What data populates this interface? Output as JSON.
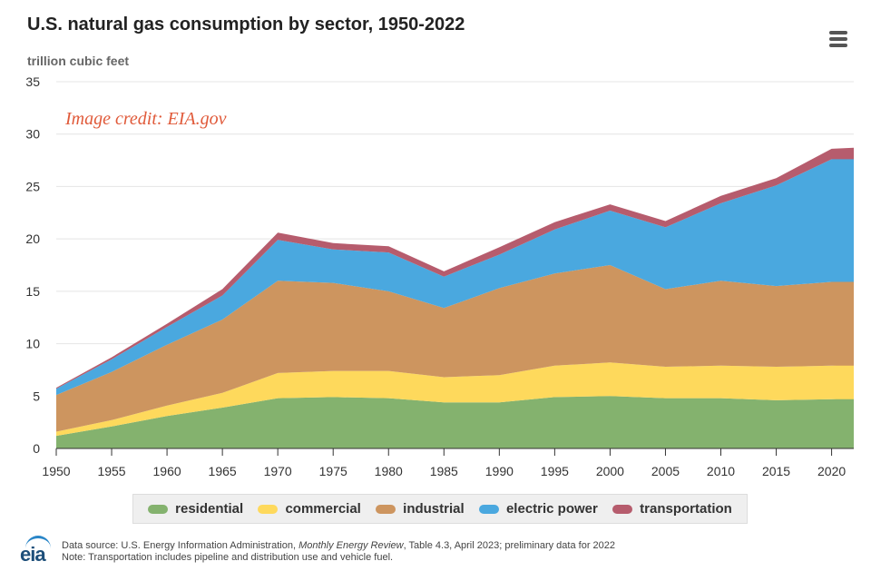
{
  "header": {
    "title": "U.S. natural gas consumption by sector, 1950-2022",
    "menu_icon": "hamburger-menu-icon"
  },
  "annotation": "Image credit: EIA.gov",
  "footer": {
    "source_prefix": "Data source: U.S. Energy Information Administration, ",
    "source_italic": "Monthly Energy Review",
    "source_suffix": ", Table 4.3, April 2023; preliminary data for 2022",
    "note": "Note: Transportation includes pipeline and distribution use and vehicle fuel.",
    "logo_text": "eia"
  },
  "colors": {
    "residential": "#84b26e",
    "commercial": "#fed95c",
    "industrial": "#cd955f",
    "electric_power": "#4aa8df",
    "transportation": "#b65c6d",
    "gridline": "#e4e4e4",
    "axis": "#333333"
  },
  "chart_data": {
    "type": "area",
    "stacked": true,
    "ylabel": "trillion cubic feet",
    "xlabel": "",
    "ylim": [
      0,
      35
    ],
    "xlim": [
      1950,
      2022
    ],
    "yticks": [
      0,
      5,
      10,
      15,
      20,
      25,
      30,
      35
    ],
    "xticks": [
      1950,
      1955,
      1960,
      1965,
      1970,
      1975,
      1980,
      1985,
      1990,
      1995,
      2000,
      2005,
      2010,
      2015,
      2020
    ],
    "grid": "horizontal",
    "legend": "bottom",
    "series_x": {
      "start": 1950,
      "step": 5
    },
    "series": [
      {
        "name": "residential",
        "key": "residential",
        "values": [
          1.2,
          2.1,
          3.1,
          3.9,
          4.8,
          4.9,
          4.8,
          4.4,
          4.4,
          4.9,
          5.0,
          4.8,
          4.8,
          4.6,
          4.7
        ]
      },
      {
        "name": "commercial",
        "key": "commercial",
        "values": [
          0.4,
          0.6,
          1.0,
          1.4,
          2.4,
          2.5,
          2.6,
          2.4,
          2.6,
          3.0,
          3.2,
          3.0,
          3.1,
          3.2,
          3.2
        ]
      },
      {
        "name": "industrial",
        "key": "industrial",
        "values": [
          3.5,
          4.6,
          5.8,
          7.0,
          8.8,
          8.4,
          7.6,
          6.6,
          8.3,
          8.8,
          9.3,
          7.4,
          8.1,
          7.7,
          8.0
        ]
      },
      {
        "name": "electric power",
        "key": "electric_power",
        "values": [
          0.6,
          1.2,
          1.7,
          2.3,
          3.9,
          3.2,
          3.7,
          3.0,
          3.2,
          4.2,
          5.2,
          5.9,
          7.4,
          9.6,
          11.7
        ]
      },
      {
        "name": "transportation",
        "key": "transportation",
        "values": [
          0.1,
          0.2,
          0.3,
          0.6,
          0.7,
          0.6,
          0.6,
          0.5,
          0.7,
          0.7,
          0.6,
          0.6,
          0.7,
          0.7,
          1.0
        ]
      }
    ]
  }
}
